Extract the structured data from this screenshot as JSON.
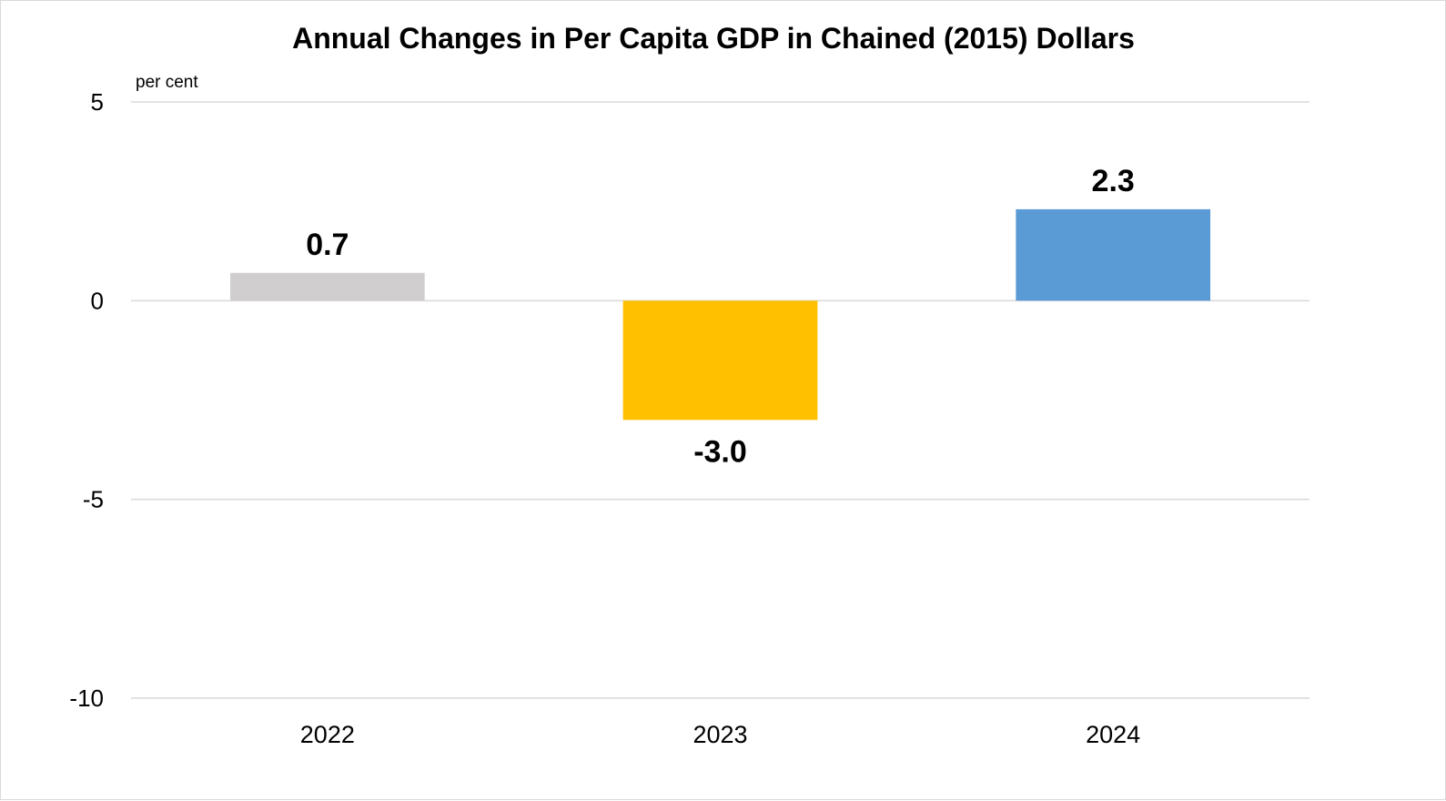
{
  "chart_data": {
    "type": "bar",
    "title": "Annual Changes in Per Capita GDP in Chained (2015) Dollars",
    "ylabel": "per cent",
    "xlabel": "",
    "categories": [
      "2022",
      "2023",
      "2024"
    ],
    "values": [
      0.7,
      -3.0,
      2.3
    ],
    "data_labels": [
      "0.7",
      "-3.0",
      "2.3"
    ],
    "colors": [
      "#d0cece",
      "#ffc000",
      "#5b9bd5"
    ],
    "ylim": [
      -10,
      5
    ],
    "yticks": [
      5,
      0,
      -5,
      -10
    ],
    "ytick_labels": [
      "5",
      "0",
      "-5",
      "-10"
    ],
    "grid": true,
    "legend": "none"
  }
}
